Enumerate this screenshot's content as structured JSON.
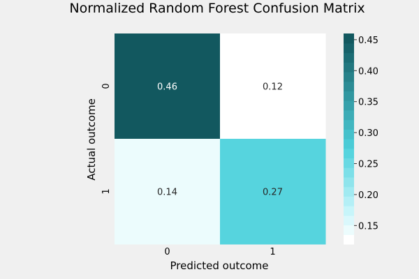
{
  "chart_data": {
    "type": "heatmap",
    "title": "Normalized Random Forest Confusion Matrix",
    "xlabel": "Predicted outcome",
    "ylabel": "Actual outcome",
    "x_categories": [
      "0",
      "1"
    ],
    "y_categories": [
      "0",
      "1"
    ],
    "values": [
      [
        0.46,
        0.12
      ],
      [
        0.14,
        0.27
      ]
    ],
    "cell_labels": [
      [
        "0.46",
        "0.12"
      ],
      [
        "0.14",
        "0.27"
      ]
    ],
    "colorbar": {
      "min": 0.12,
      "max": 0.46,
      "ticks": [
        0.15,
        0.2,
        0.25,
        0.3,
        0.35,
        0.4,
        0.45
      ],
      "tick_labels": [
        "0.15",
        "0.20",
        "0.25",
        "0.30",
        "0.35",
        "0.40",
        "0.45"
      ],
      "levels": 22,
      "colors": {
        "low": "#ffffff",
        "light": "#c4f4fa",
        "mid": "#4ed1dc",
        "high": "#12585f"
      }
    },
    "background_color": "#f0f0f0",
    "grid": false,
    "legend": "colorbar-right"
  }
}
